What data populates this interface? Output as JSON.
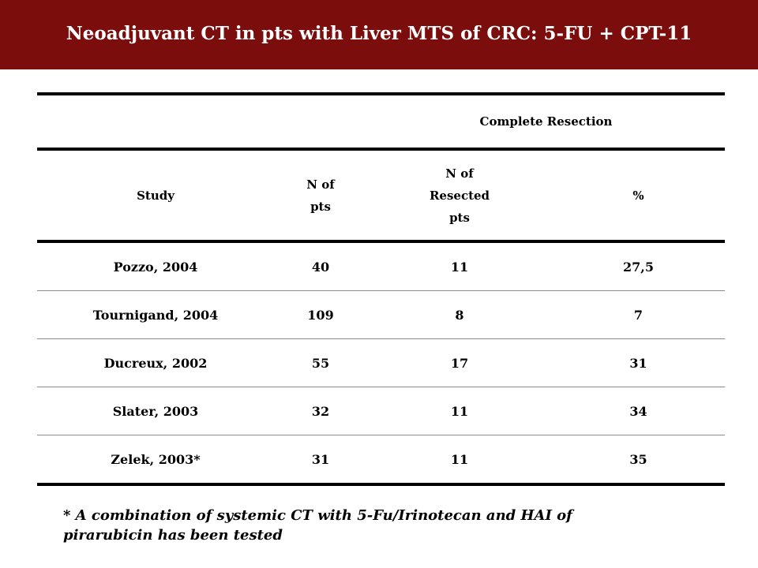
{
  "title": "Neoadjuvant CT in pts with Liver MTS of CRC: 5-FU + CPT-11",
  "table": {
    "group_header": "Complete Resection",
    "columns": {
      "study": "Study",
      "n_pts_line1": "N of",
      "n_pts_line2": "pts",
      "n_resected_line1": "N of",
      "n_resected_line2": "Resected",
      "n_resected_line3": "pts",
      "percent": "%"
    },
    "rows": [
      {
        "study": "Pozzo, 2004",
        "n_pts": "40",
        "n_resected": "11",
        "percent": "27,5"
      },
      {
        "study": "Tournigand, 2004",
        "n_pts": "109",
        "n_resected": "8",
        "percent": "7"
      },
      {
        "study": "Ducreux, 2002",
        "n_pts": "55",
        "n_resected": "17",
        "percent": "31"
      },
      {
        "study": "Slater, 2003",
        "n_pts": "32",
        "n_resected": "11",
        "percent": "34"
      },
      {
        "study": "Zelek, 2003*",
        "n_pts": "31",
        "n_resected": "11",
        "percent": "35"
      }
    ]
  },
  "footnote_line1": "* A combination of systemic CT with 5-Fu/Irinotecan and HAI of",
  "footnote_line2": "pirarubicin has been tested",
  "colors": {
    "title_bar": "#7b0d0d",
    "title_text": "#ffffff"
  }
}
